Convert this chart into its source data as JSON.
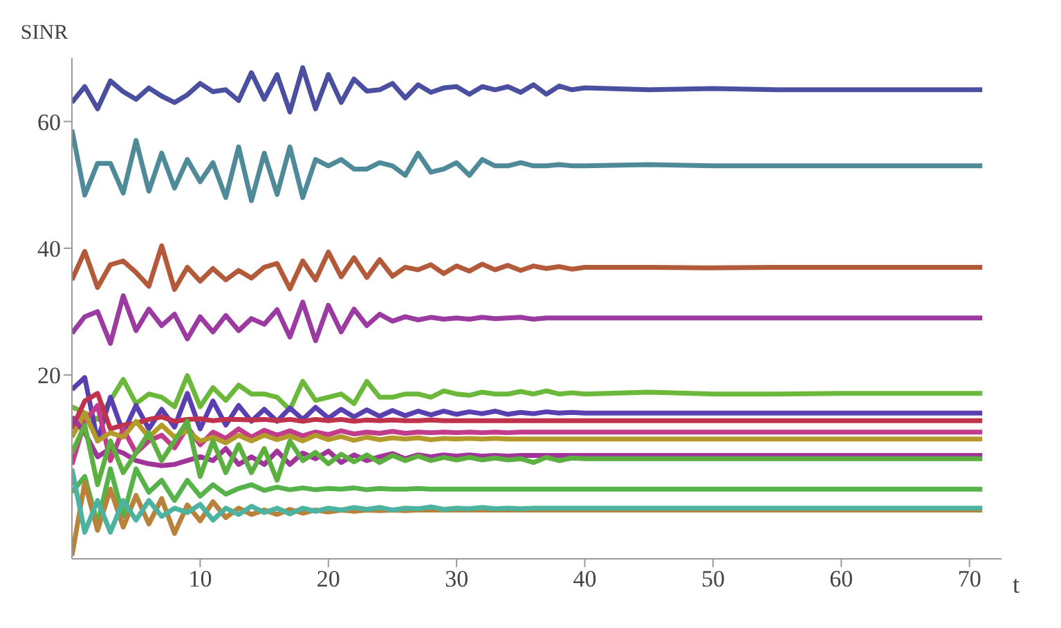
{
  "chart_data": {
    "type": "line",
    "xlabel": "t",
    "ylabel": "SINR",
    "xlim": [
      0,
      72.5
    ],
    "ylim": [
      -9,
      70
    ],
    "xticks": [
      10,
      20,
      30,
      40,
      50,
      60,
      70
    ],
    "yticks": [
      20,
      40,
      60
    ],
    "grid": false,
    "marker": "none",
    "line_style": "solid",
    "x": [
      0,
      1,
      2,
      3,
      4,
      5,
      6,
      7,
      8,
      9,
      10,
      11,
      12,
      13,
      14,
      15,
      16,
      17,
      18,
      19,
      20,
      21,
      22,
      23,
      24,
      25,
      26,
      27,
      28,
      29,
      30,
      31,
      32,
      33,
      34,
      35,
      36,
      37,
      38,
      39,
      40,
      45,
      50,
      55,
      60,
      65,
      71
    ],
    "series": [
      {
        "color": "#4b4fa0",
        "values": [
          63,
          65.5,
          62,
          66.4,
          64.7,
          63.5,
          65.3,
          64,
          63,
          64.2,
          66,
          64.7,
          65,
          63.3,
          67.7,
          63.5,
          67.4,
          61.5,
          68.5,
          62,
          67.4,
          63,
          66.7,
          64.8,
          65,
          66,
          63.7,
          65.8,
          64.6,
          65.3,
          65.5,
          64.3,
          65.5,
          65,
          65.5,
          64.6,
          65.8,
          64.3,
          65.6,
          65,
          65.3,
          65,
          65.2,
          65,
          65,
          65,
          65
        ]
      },
      {
        "color": "#4f8a99",
        "values": [
          58.7,
          48.4,
          53.4,
          53.4,
          48.7,
          57,
          49,
          55,
          49.5,
          54,
          50.5,
          53.5,
          48,
          56,
          47.5,
          55,
          48.5,
          56,
          48,
          54,
          53,
          54,
          52.5,
          52.5,
          53.5,
          53,
          51.5,
          55,
          52,
          52.5,
          53.5,
          51.5,
          54,
          53,
          53,
          53.5,
          53,
          53,
          53.2,
          53,
          53,
          53.2,
          53,
          53,
          53,
          53,
          53
        ]
      },
      {
        "color": "#b35a3a",
        "values": [
          35,
          39.5,
          33.8,
          37.4,
          38,
          36.2,
          34,
          40.4,
          33.5,
          37,
          34.8,
          36.8,
          35,
          36.5,
          35.3,
          37,
          37.6,
          33.6,
          38,
          35,
          39.4,
          35.5,
          38.5,
          35.4,
          38.2,
          35.6,
          37,
          36.6,
          37.4,
          36,
          37.2,
          36.4,
          37.5,
          36.6,
          37.3,
          36.5,
          37.2,
          36.8,
          37.1,
          36.7,
          37,
          37,
          36.9,
          37,
          37,
          37,
          37
        ]
      },
      {
        "color": "#9b3aa0",
        "values": [
          26.6,
          29.2,
          30,
          25,
          32.5,
          27,
          30.4,
          27.8,
          29.6,
          25.7,
          29.2,
          26.8,
          29.4,
          27,
          28.9,
          28,
          30.3,
          26,
          31.5,
          25.4,
          31,
          26.8,
          30.4,
          27.8,
          29.6,
          28.5,
          29.2,
          28.7,
          29.1,
          28.8,
          29,
          28.8,
          29.1,
          28.9,
          29,
          29.1,
          28.8,
          29,
          29,
          29,
          29,
          29,
          29,
          29,
          29,
          29,
          29
        ]
      },
      {
        "color": "#6cb83a",
        "values": [
          15,
          14,
          13,
          16,
          19.3,
          15.5,
          17,
          16.5,
          15,
          19.9,
          15,
          18,
          16,
          18.4,
          17,
          17,
          16.5,
          14.5,
          19,
          16,
          16.5,
          17,
          15.5,
          19,
          16.5,
          16.5,
          17,
          17,
          16.5,
          17.5,
          17,
          16.8,
          17.3,
          17,
          17,
          17.4,
          17,
          17.5,
          17,
          17.2,
          17,
          17.3,
          17,
          17,
          17.1,
          17.1,
          17.1
        ]
      },
      {
        "color": "#5a3fb0",
        "values": [
          17.7,
          19.6,
          9.6,
          16.5,
          10.9,
          15.2,
          11.5,
          14.6,
          11.8,
          17.1,
          11.5,
          15.9,
          12.1,
          15.2,
          12.7,
          14.6,
          12.7,
          14.8,
          13,
          14.9,
          13.2,
          14.6,
          13.4,
          14.5,
          13.5,
          14.4,
          13.6,
          14.3,
          13.7,
          14.3,
          13.8,
          14.2,
          13.9,
          14.3,
          13.8,
          14.1,
          13.9,
          14.2,
          14,
          14.1,
          14,
          14,
          14,
          14,
          14,
          14,
          14
        ]
      },
      {
        "color": "#c0334d",
        "values": [
          11.5,
          15.9,
          17.1,
          11.5,
          12.1,
          12.4,
          13,
          13.4,
          12.7,
          13,
          13.1,
          12.8,
          13,
          13,
          12.9,
          13,
          12.8,
          13,
          12.7,
          13,
          12.8,
          13,
          12.7,
          12.9,
          12.8,
          12.9,
          12.8,
          12.8,
          12.9,
          12.8,
          12.8,
          12.8,
          12.8,
          12.8,
          12.8,
          12.8,
          12.8,
          12.8,
          12.8,
          12.8,
          12.8,
          12.8,
          12.8,
          12.8,
          12.8,
          12.8,
          12.8
        ]
      },
      {
        "color": "#c23c8c",
        "values": [
          5.9,
          12.7,
          15.2,
          6.5,
          11.5,
          7.7,
          9.6,
          10.5,
          8.5,
          11.8,
          9,
          11,
          10,
          11.5,
          10.2,
          11.3,
          10.5,
          11.2,
          10.4,
          11,
          10.6,
          11.2,
          10.7,
          11,
          10.8,
          11.1,
          10.8,
          11,
          10.9,
          11,
          10.9,
          11,
          10.9,
          11,
          10.9,
          11,
          11,
          11,
          11,
          11,
          11,
          11,
          11,
          11,
          11,
          11,
          11
        ]
      },
      {
        "color": "#b39a2a",
        "values": [
          10.2,
          14,
          9.6,
          10.9,
          10.2,
          12.7,
          10.2,
          12.1,
          10.2,
          11.2,
          9.6,
          10.2,
          9.3,
          10.5,
          9.6,
          10.5,
          9.8,
          10.4,
          9.6,
          10.5,
          9.8,
          10.3,
          9.7,
          10.2,
          9.8,
          10.1,
          9.9,
          10.1,
          9.8,
          10,
          9.9,
          10,
          9.9,
          10,
          9.9,
          9.9,
          9.9,
          9.9,
          9.9,
          9.9,
          9.9,
          9.9,
          9.9,
          9.9,
          9.9,
          9.9,
          9.9
        ]
      },
      {
        "color": "#a0349a",
        "values": [
          13.4,
          10.9,
          7.1,
          8.4,
          7.7,
          6.5,
          6,
          5.7,
          5.9,
          6.5,
          7.1,
          6.5,
          8.4,
          5.9,
          7.1,
          5.9,
          8,
          5.9,
          7.7,
          6.8,
          8,
          6.2,
          7.4,
          6.5,
          7.1,
          7.6,
          6.8,
          7.4,
          7.1,
          7.4,
          7.2,
          7.4,
          7.2,
          7.3,
          7.2,
          7.3,
          7.3,
          7.3,
          7.3,
          7.3,
          7.3,
          7.3,
          7.3,
          7.3,
          7.3,
          7.3,
          7.3
        ]
      },
      {
        "color": "#5cb040",
        "values": [
          7.7,
          12.1,
          2.7,
          9.6,
          4.6,
          7.7,
          10.9,
          6.5,
          9.6,
          12.7,
          4,
          9.6,
          4.6,
          9,
          4.6,
          8.4,
          3.4,
          9.6,
          6.5,
          7.8,
          6,
          7.5,
          6.3,
          7.4,
          6.2,
          7.3,
          6.5,
          7.2,
          6.5,
          7,
          6.6,
          7,
          6.6,
          6.9,
          6.6,
          6.8,
          6.2,
          7,
          6.5,
          6.9,
          6.8,
          6.8,
          6.8,
          6.8,
          6.8,
          6.8,
          6.8
        ]
      },
      {
        "color": "#56b34a",
        "values": [
          1.5,
          4,
          -3.5,
          5.2,
          -2.3,
          5.2,
          1.5,
          3.4,
          0.2,
          3.4,
          0.9,
          2.7,
          1.2,
          2.1,
          2.7,
          1.8,
          2.3,
          1.9,
          2.2,
          1.9,
          2.1,
          2,
          2.2,
          1.9,
          2.1,
          2,
          2,
          2.1,
          2,
          2,
          2,
          2,
          2,
          2,
          2,
          2,
          2,
          2,
          2,
          2,
          2,
          2,
          2,
          2,
          2,
          2,
          2
        ]
      },
      {
        "color": "#b8823a",
        "values": [
          -8.5,
          3,
          -4.5,
          2,
          -4,
          1,
          -3.5,
          0.5,
          -5,
          -0.5,
          -3,
          0,
          -2.5,
          -1,
          -2,
          -1.3,
          -2,
          -1.2,
          -1.8,
          -1.3,
          -1.6,
          -1.3,
          -1.5,
          -1.3,
          -1.4,
          -1.3,
          -1.4,
          -1.3,
          -1.3,
          -1.3,
          -1.3,
          -1.3,
          -1.3,
          -1.3,
          -1.3,
          -1.3,
          -1.3,
          -1.3,
          -1.3,
          -1.3,
          -1.3,
          -1.3,
          -1.3,
          -1.3,
          -1.3,
          -1.3,
          -1.3
        ]
      },
      {
        "color": "#4cb3a0",
        "values": [
          5.2,
          -4.8,
          0.2,
          -4.8,
          0.2,
          -2.9,
          0.2,
          -2.3,
          -1,
          -1.7,
          -0.4,
          -2.9,
          -1,
          -2,
          -0.7,
          -1.7,
          -1,
          -1.9,
          -1,
          -1.5,
          -1,
          -1.3,
          -0.9,
          -1.2,
          -0.9,
          -1.3,
          -1,
          -1.1,
          -0.8,
          -1.2,
          -1,
          -1.1,
          -0.9,
          -1.1,
          -1,
          -1.1,
          -1,
          -1,
          -1,
          -1,
          -1,
          -1,
          -1,
          -1,
          -1,
          -1,
          -1
        ]
      }
    ]
  }
}
